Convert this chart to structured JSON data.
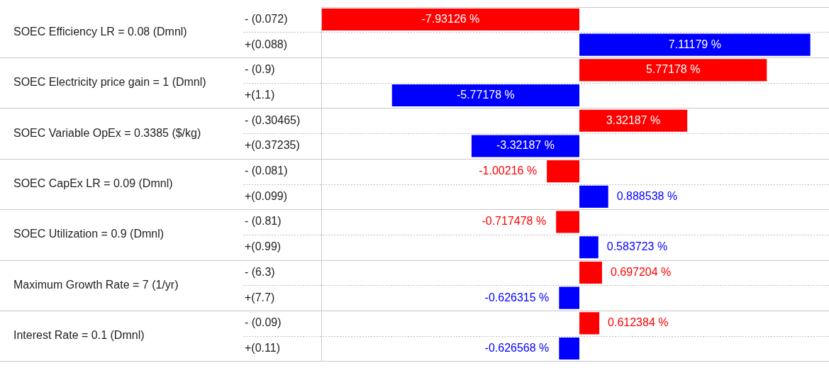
{
  "chart_data": {
    "type": "bar",
    "orientation": "horizontal",
    "categories": [
      "- (0.072)",
      "+(0.088)",
      "- (0.9)",
      "+(1.1)",
      "- (0.30465)",
      "+(0.37235)",
      "- (0.081)",
      "+(0.099)",
      "- (0.81)",
      "+(0.99)",
      "- (6.3)",
      "+(7.7)",
      "- (0.09)",
      "+(0.11)"
    ],
    "values": [
      -7.93126,
      7.11179,
      5.77178,
      -5.77178,
      3.32187,
      -3.32187,
      -1.00216,
      0.888538,
      -0.717478,
      0.583723,
      0.697204,
      -0.626315,
      0.612384,
      -0.626568
    ],
    "colors": [
      "#ff0000",
      "#0000ff",
      "#ff0000",
      "#0000ff",
      "#ff0000",
      "#0000ff",
      "#ff0000",
      "#0000ff",
      "#ff0000",
      "#0000ff",
      "#ff0000",
      "#0000ff",
      "#ff0000",
      "#0000ff"
    ],
    "value_labels": [
      "-7.93126 %",
      "7.11179 %",
      "5.77178 %",
      "-5.77178 %",
      "3.32187 %",
      "-3.32187 %",
      "-1.00216 %",
      "0.888538 %",
      "-0.717478 %",
      "0.583723 %",
      "0.697204 %",
      "-0.626315 %",
      "0.612384 %",
      "-0.626568 %"
    ],
    "annotations": [
      "SOEC Efficiency LR = 0.08 (Dmnl)",
      "SOEC Electricity price gain = 1 (Dmnl)",
      "SOEC Variable OpEx = 0.3385 ($/kg)",
      "SOEC CapEx LR = 0.09 (Dmnl)",
      "SOEC Utilization = 0.9 (Dmnl)",
      "Maximum Growth Rate = 7 (1/yr)",
      "Interest Rate = 0.1 (Dmnl)"
    ],
    "xlim": [
      -7.95,
      7.6
    ],
    "legend": false
  }
}
